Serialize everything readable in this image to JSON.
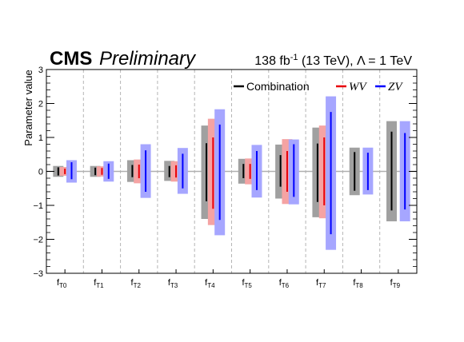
{
  "header": {
    "experiment": "CMS",
    "status": "Preliminary",
    "lumi_value": "138 fb",
    "lumi_exp": "-1",
    "lumi_energy": " (13 TeV), Λ = 1 TeV"
  },
  "chart_data": {
    "type": "interval",
    "title": "",
    "xlabel": "",
    "ylabel": "Parameter value",
    "ylim": [
      -3,
      3
    ],
    "yticks": [
      -3,
      -2,
      -1,
      0,
      1,
      2,
      3
    ],
    "legend_placement": "top-right",
    "grid": false,
    "categories": [
      {
        "base": "f",
        "sub": "T0"
      },
      {
        "base": "f",
        "sub": "T1"
      },
      {
        "base": "f",
        "sub": "T2"
      },
      {
        "base": "f",
        "sub": "T3"
      },
      {
        "base": "f",
        "sub": "T4"
      },
      {
        "base": "f",
        "sub": "T5"
      },
      {
        "base": "f",
        "sub": "T6"
      },
      {
        "base": "f",
        "sub": "T7"
      },
      {
        "base": "f",
        "sub": "T8"
      },
      {
        "base": "f",
        "sub": "T9"
      }
    ],
    "series": [
      {
        "name": "Combination",
        "line_color": "#000000",
        "band_color": "#a0a0a0",
        "intervals_68": [
          [
            -0.12,
            0.12
          ],
          [
            -0.11,
            0.11
          ],
          [
            -0.17,
            0.19
          ],
          [
            -0.17,
            0.16
          ],
          [
            -0.88,
            0.83
          ],
          [
            -0.2,
            0.22
          ],
          [
            -0.45,
            0.48
          ],
          [
            -0.9,
            0.82
          ],
          [
            -0.57,
            0.57
          ],
          [
            -1.15,
            1.17
          ]
        ],
        "intervals_95": [
          [
            -0.16,
            0.16
          ],
          [
            -0.16,
            0.16
          ],
          [
            -0.31,
            0.33
          ],
          [
            -0.28,
            0.31
          ],
          [
            -1.4,
            1.35
          ],
          [
            -0.36,
            0.37
          ],
          [
            -0.8,
            0.79
          ],
          [
            -1.35,
            1.29
          ],
          [
            -0.7,
            0.7
          ],
          [
            -1.47,
            1.48
          ]
        ]
      },
      {
        "name": "WV",
        "line_color": "#e8000b",
        "band_color": "#f5a3a3",
        "intervals_68": [
          [
            -0.08,
            0.08
          ],
          [
            -0.1,
            0.1
          ],
          [
            -0.2,
            0.2
          ],
          [
            -0.18,
            0.18
          ],
          [
            -1.1,
            1.0
          ],
          [
            -0.22,
            0.22
          ],
          [
            -0.6,
            0.6
          ],
          [
            -1.0,
            1.0
          ],
          null,
          null
        ],
        "intervals_95": [
          [
            -0.13,
            0.13
          ],
          [
            -0.15,
            0.15
          ],
          [
            -0.35,
            0.35
          ],
          [
            -0.3,
            0.3
          ],
          [
            -1.58,
            1.55
          ],
          [
            -0.38,
            0.38
          ],
          [
            -0.96,
            0.95
          ],
          [
            -1.38,
            1.35
          ],
          null,
          null
        ]
      },
      {
        "name": "ZV",
        "line_color": "#0000ff",
        "band_color": "#a6a6ff",
        "intervals_68": [
          [
            -0.23,
            0.27
          ],
          [
            -0.22,
            0.23
          ],
          [
            -0.6,
            0.62
          ],
          [
            -0.5,
            0.52
          ],
          [
            -1.43,
            1.38
          ],
          [
            -0.55,
            0.6
          ],
          [
            -0.75,
            0.8
          ],
          [
            -1.85,
            1.75
          ],
          [
            -0.55,
            0.55
          ],
          [
            -1.12,
            1.13
          ]
        ],
        "intervals_95": [
          [
            -0.33,
            0.33
          ],
          [
            -0.3,
            0.3
          ],
          [
            -0.78,
            0.8
          ],
          [
            -0.66,
            0.69
          ],
          [
            -1.88,
            1.83
          ],
          [
            -0.77,
            0.78
          ],
          [
            -0.97,
            0.94
          ],
          [
            -2.31,
            2.21
          ],
          [
            -0.68,
            0.7
          ],
          [
            -1.47,
            1.48
          ]
        ]
      }
    ]
  }
}
